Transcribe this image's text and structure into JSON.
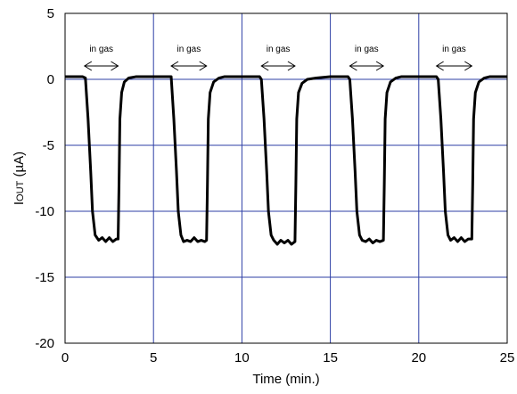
{
  "chart_data": {
    "type": "line",
    "xlabel": "Time (min.)",
    "ylabel": {
      "main": "I",
      "sub": "OUT",
      "unit": " (µA)"
    },
    "xlim": [
      0,
      25
    ],
    "ylim": [
      -20,
      5
    ],
    "xticks": [
      0,
      5,
      10,
      15,
      20,
      25
    ],
    "yticks": [
      5,
      0,
      -5,
      -10,
      -15,
      -20
    ],
    "grid": true,
    "grid_color": "#2E3FA6",
    "line_color": "#000000",
    "annotations": [
      {
        "text": "in gas",
        "x_start": 1.1,
        "x_end": 3.0
      },
      {
        "text": "in gas",
        "x_start": 6.0,
        "x_end": 8.0
      },
      {
        "text": "in gas",
        "x_start": 11.1,
        "x_end": 13.0
      },
      {
        "text": "in gas",
        "x_start": 16.1,
        "x_end": 18.0
      },
      {
        "text": "in gas",
        "x_start": 21.0,
        "x_end": 23.0
      }
    ],
    "series": [
      {
        "values": [
          [
            0.0,
            0.2
          ],
          [
            1.0,
            0.2
          ],
          [
            1.15,
            0.1
          ],
          [
            1.3,
            -3.0
          ],
          [
            1.45,
            -7.0
          ],
          [
            1.55,
            -10.0
          ],
          [
            1.7,
            -11.8
          ],
          [
            1.9,
            -12.2
          ],
          [
            2.1,
            -12.0
          ],
          [
            2.3,
            -12.3
          ],
          [
            2.5,
            -12.0
          ],
          [
            2.7,
            -12.3
          ],
          [
            2.9,
            -12.1
          ],
          [
            3.0,
            -12.1
          ],
          [
            3.05,
            -8.0
          ],
          [
            3.1,
            -3.0
          ],
          [
            3.2,
            -1.0
          ],
          [
            3.35,
            -0.2
          ],
          [
            3.6,
            0.1
          ],
          [
            4.0,
            0.2
          ],
          [
            5.0,
            0.2
          ],
          [
            6.0,
            0.2
          ],
          [
            6.15,
            -3.0
          ],
          [
            6.3,
            -7.0
          ],
          [
            6.4,
            -10.0
          ],
          [
            6.55,
            -11.8
          ],
          [
            6.7,
            -12.3
          ],
          [
            6.9,
            -12.2
          ],
          [
            7.1,
            -12.3
          ],
          [
            7.3,
            -12.0
          ],
          [
            7.5,
            -12.3
          ],
          [
            7.7,
            -12.2
          ],
          [
            7.9,
            -12.3
          ],
          [
            8.0,
            -12.2
          ],
          [
            8.05,
            -8.0
          ],
          [
            8.1,
            -3.0
          ],
          [
            8.2,
            -1.0
          ],
          [
            8.4,
            -0.2
          ],
          [
            8.7,
            0.1
          ],
          [
            9.0,
            0.2
          ],
          [
            10.0,
            0.2
          ],
          [
            11.0,
            0.2
          ],
          [
            11.1,
            0.0
          ],
          [
            11.25,
            -3.0
          ],
          [
            11.4,
            -7.0
          ],
          [
            11.5,
            -10.0
          ],
          [
            11.65,
            -11.8
          ],
          [
            11.8,
            -12.2
          ],
          [
            12.0,
            -12.5
          ],
          [
            12.2,
            -12.2
          ],
          [
            12.4,
            -12.4
          ],
          [
            12.6,
            -12.2
          ],
          [
            12.8,
            -12.5
          ],
          [
            13.0,
            -12.3
          ],
          [
            13.05,
            -8.0
          ],
          [
            13.1,
            -3.0
          ],
          [
            13.2,
            -1.0
          ],
          [
            13.4,
            -0.3
          ],
          [
            13.7,
            0.0
          ],
          [
            14.2,
            0.1
          ],
          [
            15.0,
            0.2
          ],
          [
            16.0,
            0.2
          ],
          [
            16.1,
            0.0
          ],
          [
            16.25,
            -3.0
          ],
          [
            16.4,
            -7.0
          ],
          [
            16.5,
            -10.0
          ],
          [
            16.65,
            -11.8
          ],
          [
            16.8,
            -12.2
          ],
          [
            17.0,
            -12.3
          ],
          [
            17.2,
            -12.1
          ],
          [
            17.4,
            -12.4
          ],
          [
            17.6,
            -12.2
          ],
          [
            17.8,
            -12.3
          ],
          [
            18.0,
            -12.2
          ],
          [
            18.05,
            -8.0
          ],
          [
            18.1,
            -3.0
          ],
          [
            18.2,
            -1.0
          ],
          [
            18.4,
            -0.2
          ],
          [
            18.7,
            0.1
          ],
          [
            19.0,
            0.2
          ],
          [
            20.0,
            0.2
          ],
          [
            21.0,
            0.2
          ],
          [
            21.1,
            0.0
          ],
          [
            21.25,
            -3.0
          ],
          [
            21.4,
            -7.0
          ],
          [
            21.5,
            -10.0
          ],
          [
            21.65,
            -11.8
          ],
          [
            21.8,
            -12.2
          ],
          [
            22.0,
            -12.0
          ],
          [
            22.2,
            -12.3
          ],
          [
            22.4,
            -12.0
          ],
          [
            22.6,
            -12.3
          ],
          [
            22.8,
            -12.1
          ],
          [
            23.0,
            -12.1
          ],
          [
            23.05,
            -8.0
          ],
          [
            23.1,
            -3.0
          ],
          [
            23.2,
            -1.0
          ],
          [
            23.4,
            -0.2
          ],
          [
            23.7,
            0.1
          ],
          [
            24.0,
            0.2
          ],
          [
            25.0,
            0.2
          ]
        ]
      }
    ]
  }
}
